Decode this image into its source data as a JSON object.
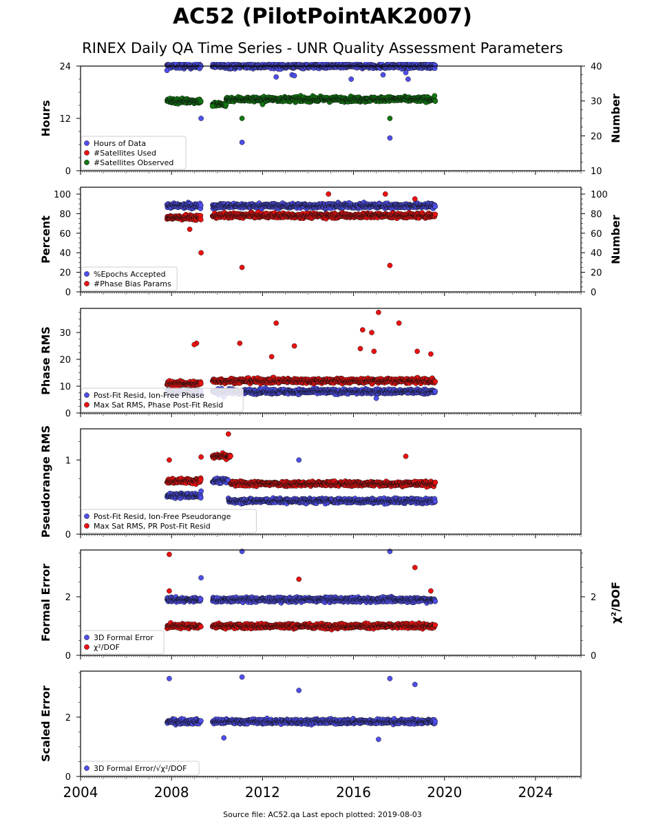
{
  "title": "AC52 (PilotPointAK2007)",
  "subtitle": "RINEX Daily QA Time Series - UNR Quality Assessment Parameters",
  "footer": "Source file: AC52.qa Last epoch plotted: 2019-08-03",
  "colors": {
    "blue": "#4f4fef",
    "red": "#ee1111",
    "green": "#117711",
    "marker_edge": "#111111"
  },
  "chart_data": [
    {
      "type": "scatter",
      "ylabel": "Hours",
      "ylabel_right": "Number",
      "xlim": [
        2004,
        2026
      ],
      "ylim": [
        0,
        24
      ],
      "ylim_right": [
        10,
        40
      ],
      "yticks": [
        0,
        12,
        24
      ],
      "yticks_right": [
        10,
        20,
        30,
        40
      ],
      "legend_location": "lower-left",
      "series": [
        {
          "name": "Hours of Data",
          "color": "#4f4fef",
          "axis": "left",
          "segments": [
            [
              2007.8,
              2009.3,
              24.0
            ],
            [
              2009.8,
              2019.6,
              24.0
            ]
          ],
          "outliers": [
            [
              2007.8,
              23.0
            ],
            [
              2009.3,
              12.0
            ],
            [
              2011.1,
              6.5
            ],
            [
              2012.6,
              21.5
            ],
            [
              2013.3,
              22.0
            ],
            [
              2013.4,
              21.8
            ],
            [
              2015.9,
              21.0
            ],
            [
              2017.3,
              22.0
            ],
            [
              2017.6,
              7.5
            ],
            [
              2018.3,
              22.5
            ],
            [
              2018.4,
              21.0
            ]
          ]
        },
        {
          "name": "#Satellites Used",
          "color": "#ee1111",
          "axis": "right",
          "segments": [],
          "outliers": []
        },
        {
          "name": "#Satellites Observed",
          "color": "#117711",
          "axis": "right",
          "segments": [
            [
              2007.8,
              2009.3,
              30.0
            ],
            [
              2009.8,
              2010.4,
              29.0
            ],
            [
              2010.4,
              2019.6,
              30.5
            ]
          ],
          "outliers": [
            [
              2011.1,
              25.0
            ],
            [
              2017.6,
              25.0
            ],
            [
              2009.8,
              28.5
            ],
            [
              2012.0,
              29.0
            ]
          ]
        }
      ]
    },
    {
      "type": "scatter",
      "ylabel": "Percent",
      "ylabel_right": "Number",
      "xlim": [
        2004,
        2026
      ],
      "ylim": [
        0,
        107
      ],
      "ylim_right": [
        0,
        107
      ],
      "yticks": [
        0,
        20,
        40,
        60,
        80,
        100
      ],
      "yticks_right": [
        0,
        20,
        40,
        60,
        80,
        100
      ],
      "legend_location": "lower-left",
      "series": [
        {
          "name": "%Epochs Accepted",
          "color": "#4f4fef",
          "axis": "left",
          "segments": [
            [
              2007.8,
              2009.3,
              88.0
            ],
            [
              2009.8,
              2019.6,
              88.0
            ]
          ],
          "outliers": []
        },
        {
          "name": "#Phase Bias Params",
          "color": "#ee1111",
          "axis": "right",
          "segments": [
            [
              2007.8,
              2009.3,
              76.0
            ],
            [
              2009.8,
              2019.6,
              78.0
            ]
          ],
          "outliers": [
            [
              2009.3,
              40.0
            ],
            [
              2011.1,
              25.0
            ],
            [
              2017.6,
              27.0
            ],
            [
              2014.9,
              100.0
            ],
            [
              2017.4,
              100.0
            ],
            [
              2018.7,
              95.0
            ],
            [
              2008.8,
              64.0
            ]
          ]
        }
      ]
    },
    {
      "type": "scatter",
      "ylabel": "Phase RMS",
      "xlim": [
        2004,
        2026
      ],
      "ylim": [
        0,
        39
      ],
      "yticks": [
        0,
        10,
        20,
        30
      ],
      "legend_location": "lower-left",
      "series": [
        {
          "name": "Post-Fit Resid, Ion-Free Phase",
          "color": "#4f4fef",
          "axis": "left",
          "segments": [
            [
              2007.8,
              2009.3,
              8.0
            ],
            [
              2009.8,
              2019.6,
              8.0
            ]
          ],
          "outliers": [
            [
              2010.3,
              6.0
            ],
            [
              2017.0,
              5.5
            ]
          ]
        },
        {
          "name": "Max Sat RMS, Phase Post-Fit Resid",
          "color": "#ee1111",
          "axis": "left",
          "segments": [
            [
              2007.8,
              2009.3,
              11.0
            ],
            [
              2009.8,
              2019.6,
              12.0
            ]
          ],
          "outliers": [
            [
              2012.6,
              33.5
            ],
            [
              2016.4,
              31.0
            ],
            [
              2016.8,
              30.0
            ],
            [
              2017.1,
              37.5
            ],
            [
              2018.0,
              33.5
            ],
            [
              2009.1,
              26.0
            ],
            [
              2009.0,
              25.5
            ],
            [
              2011.0,
              26.0
            ],
            [
              2013.4,
              25.0
            ],
            [
              2016.3,
              24.0
            ],
            [
              2016.9,
              23.0
            ],
            [
              2019.4,
              22.0
            ],
            [
              2012.4,
              21.0
            ],
            [
              2018.8,
              23.0
            ]
          ]
        }
      ]
    },
    {
      "type": "scatter",
      "ylabel": "Pseudorange RMS",
      "xlim": [
        2004,
        2026
      ],
      "ylim": [
        0,
        1.42
      ],
      "yticks": [
        0,
        1
      ],
      "legend_location": "lower-left",
      "series": [
        {
          "name": "Post-Fit Resid, Ion-Free Pseudorange",
          "color": "#4f4fef",
          "axis": "left",
          "segments": [
            [
              2007.8,
              2009.3,
              0.52
            ],
            [
              2009.8,
              2010.5,
              0.72
            ],
            [
              2010.5,
              2019.6,
              0.45
            ]
          ],
          "outliers": [
            [
              2013.6,
              1.0
            ],
            [
              2009.3,
              0.58
            ]
          ]
        },
        {
          "name": "Max Sat RMS, PR Post-Fit Resid",
          "color": "#ee1111",
          "axis": "left",
          "segments": [
            [
              2007.8,
              2009.3,
              0.72
            ],
            [
              2009.8,
              2010.6,
              1.05
            ],
            [
              2010.6,
              2019.6,
              0.68
            ]
          ],
          "outliers": [
            [
              2010.5,
              1.35
            ],
            [
              2007.9,
              1.0
            ],
            [
              2009.3,
              1.04
            ],
            [
              2018.3,
              1.05
            ]
          ]
        }
      ]
    },
    {
      "type": "scatter",
      "ylabel": "Formal Error",
      "ylabel_right": "χ²/DOF",
      "xlim": [
        2004,
        2026
      ],
      "ylim": [
        0,
        3.6
      ],
      "ylim_right": [
        0,
        3.6
      ],
      "yticks": [
        0,
        2
      ],
      "yticks_right": [
        0,
        2
      ],
      "legend_location": "lower-left",
      "series": [
        {
          "name": "3D Formal Error",
          "color": "#4f4fef",
          "axis": "left",
          "segments": [
            [
              2007.8,
              2009.3,
              1.9
            ],
            [
              2009.8,
              2019.6,
              1.9
            ]
          ],
          "outliers": [
            [
              2011.1,
              3.55
            ],
            [
              2017.6,
              3.55
            ],
            [
              2009.3,
              2.65
            ]
          ]
        },
        {
          "name": "χ²/DOF",
          "color": "#ee1111",
          "axis": "right",
          "segments": [
            [
              2007.8,
              2009.3,
              1.0
            ],
            [
              2009.8,
              2019.6,
              1.0
            ]
          ],
          "outliers": [
            [
              2007.9,
              3.45
            ],
            [
              2013.6,
              2.6
            ],
            [
              2018.7,
              3.0
            ],
            [
              2007.9,
              2.2
            ],
            [
              2019.4,
              2.2
            ]
          ]
        }
      ]
    },
    {
      "type": "scatter",
      "ylabel": "Scaled Error",
      "xlim": [
        2004,
        2026
      ],
      "ylim": [
        0,
        3.55
      ],
      "yticks": [
        0,
        2
      ],
      "xticks": [
        2004,
        2008,
        2012,
        2016,
        2020,
        2024
      ],
      "legend_location": "lower-left",
      "series": [
        {
          "name": "3D Formal Error/√χ²/DOF",
          "color": "#4f4fef",
          "axis": "left",
          "segments": [
            [
              2007.8,
              2009.3,
              1.85
            ],
            [
              2009.8,
              2019.6,
              1.85
            ]
          ],
          "outliers": [
            [
              2007.9,
              3.3
            ],
            [
              2011.1,
              3.35
            ],
            [
              2013.6,
              2.9
            ],
            [
              2017.6,
              3.3
            ],
            [
              2018.7,
              3.1
            ],
            [
              2010.3,
              1.3
            ],
            [
              2017.1,
              1.25
            ]
          ]
        }
      ]
    }
  ]
}
